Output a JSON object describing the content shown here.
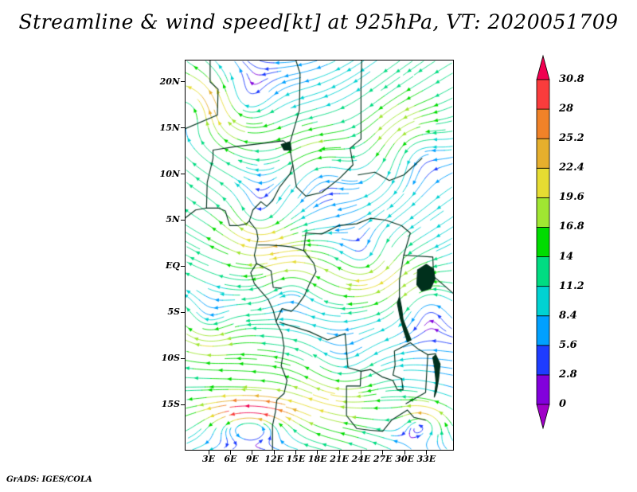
{
  "chart": {
    "title": "Streamline & wind speed[kt] at 925hPa, VT: 2020051709",
    "attribution": "GrADS: IGES/COLA"
  },
  "chart_data": {
    "type": "streamline",
    "variable": "wind speed",
    "unit": "kt",
    "pressure_level": "925hPa",
    "valid_time": "2020051709",
    "x_axis": {
      "tick_labels": [
        "3E",
        "6E",
        "9E",
        "12E",
        "15E",
        "18E",
        "21E",
        "24E",
        "27E",
        "30E",
        "33E"
      ],
      "lon_range": [
        -0.3,
        36.8
      ]
    },
    "y_axis": {
      "tick_labels": [
        "20N",
        "15N",
        "10N",
        "5N",
        "EQ",
        "5S",
        "10S",
        "15S"
      ],
      "lat_range": [
        -20,
        22.4
      ]
    },
    "colorbar": {
      "levels": [
        0,
        2.8,
        5.6,
        8.4,
        11.2,
        14,
        16.8,
        19.6,
        22.4,
        25.2,
        28,
        30.8
      ],
      "segment_colors": [
        "#8200dc",
        "#1e3cff",
        "#00a0ff",
        "#00d2d2",
        "#00dc82",
        "#00dc00",
        "#a0e632",
        "#e6dc32",
        "#e6af2d",
        "#f08228",
        "#fa3c3c"
      ],
      "below_color": "#a000c8",
      "above_color": "#f00050",
      "orientation": "vertical",
      "position": "right"
    },
    "map_style": {
      "border_color": "#00301c",
      "background": "#ffffff"
    }
  }
}
